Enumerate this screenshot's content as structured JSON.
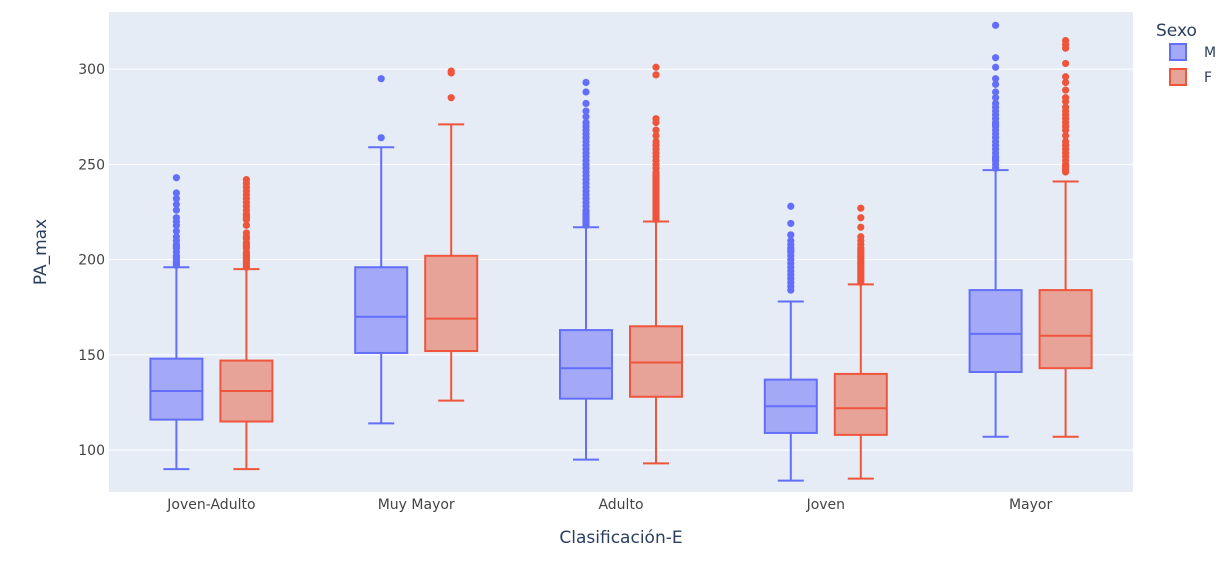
{
  "chart_data": {
    "type": "box",
    "xlabel": "Clasificación-E",
    "ylabel": "PA_max",
    "ylim": [
      78,
      330
    ],
    "yticks": [
      100,
      150,
      200,
      250,
      300
    ],
    "categories": [
      "Joven-Adulto",
      "Muy Mayor",
      "Adulto",
      "Joven",
      "Mayor"
    ],
    "legend": {
      "title": "Sexo",
      "position": "top-right"
    },
    "background": "#e5ecf6",
    "grid": true,
    "series": [
      {
        "name": "M",
        "color": "#636efa",
        "fill": "#a3a9f6",
        "boxes": [
          {
            "category": "Joven-Adulto",
            "lower_fence": 90,
            "q1": 116,
            "median": 131,
            "q3": 148,
            "upper_fence": 196,
            "outliers": [
              197,
              198,
              199,
              200,
              201,
              202,
              204,
              206,
              207,
              208,
              210,
              212,
              215,
              218,
              220,
              222,
              226,
              229,
              232,
              235,
              243
            ]
          },
          {
            "category": "Muy Mayor",
            "lower_fence": 114,
            "q1": 151,
            "median": 170,
            "q3": 196,
            "upper_fence": 259,
            "outliers": [
              264,
              295
            ]
          },
          {
            "category": "Adulto",
            "lower_fence": 95,
            "q1": 127,
            "median": 143,
            "q3": 163,
            "upper_fence": 217,
            "outliers": [
              218,
              219,
              220,
              221,
              222,
              223,
              224,
              225,
              226,
              228,
              230,
              232,
              234,
              236,
              238,
              240,
              242,
              244,
              246,
              248,
              250,
              252,
              254,
              256,
              258,
              260,
              262,
              264,
              266,
              268,
              270,
              272,
              275,
              278,
              282,
              288,
              293
            ]
          },
          {
            "category": "Joven",
            "lower_fence": 84,
            "q1": 109,
            "median": 123,
            "q3": 137,
            "upper_fence": 178,
            "outliers": [
              184,
              186,
              188,
              190,
              192,
              194,
              196,
              198,
              200,
              202,
              204,
              205,
              206,
              208,
              210,
              213,
              219,
              228
            ]
          },
          {
            "category": "Mayor",
            "lower_fence": 107,
            "q1": 141,
            "median": 161,
            "q3": 184,
            "upper_fence": 247,
            "outliers": [
              248,
              250,
              252,
              253,
              254,
              256,
              258,
              260,
              262,
              264,
              266,
              268,
              270,
              271,
              272,
              274,
              276,
              278,
              280,
              282,
              285,
              288,
              292,
              295,
              301,
              306,
              323
            ]
          }
        ]
      },
      {
        "name": "F",
        "color": "#ef553b",
        "fill": "#e8a398",
        "boxes": [
          {
            "category": "Joven-Adulto",
            "lower_fence": 90,
            "q1": 115,
            "median": 131,
            "q3": 147,
            "upper_fence": 195,
            "outliers": [
              196,
              197,
              198,
              199,
              200,
              201,
              202,
              203,
              204,
              206,
              207,
              208,
              209,
              211,
              212,
              214,
              218,
              221,
              222,
              223,
              224,
              226,
              228,
              230,
              232,
              234,
              236,
              238,
              240,
              242
            ]
          },
          {
            "category": "Muy Mayor",
            "lower_fence": 126,
            "q1": 152,
            "median": 169,
            "q3": 202,
            "upper_fence": 271,
            "outliers": [
              285,
              298,
              299
            ]
          },
          {
            "category": "Adulto",
            "lower_fence": 93,
            "q1": 128,
            "median": 146,
            "q3": 165,
            "upper_fence": 220,
            "outliers": [
              221,
              222,
              223,
              224,
              225,
              226,
              227,
              228,
              229,
              230,
              231,
              232,
              233,
              234,
              235,
              236,
              237,
              238,
              239,
              240,
              241,
              242,
              243,
              244,
              245,
              246,
              248,
              250,
              252,
              254,
              256,
              258,
              260,
              262,
              265,
              268,
              272,
              274,
              297,
              301
            ]
          },
          {
            "category": "Joven",
            "lower_fence": 85,
            "q1": 108,
            "median": 122,
            "q3": 140,
            "upper_fence": 187,
            "outliers": [
              188,
              189,
              190,
              191,
              192,
              193,
              194,
              195,
              196,
              197,
              198,
              199,
              200,
              201,
              202,
              203,
              204,
              205,
              206,
              208,
              210,
              212,
              217,
              222,
              227
            ]
          },
          {
            "category": "Mayor",
            "lower_fence": 107,
            "q1": 143,
            "median": 160,
            "q3": 184,
            "upper_fence": 241,
            "outliers": [
              246,
              247,
              248,
              249,
              250,
              252,
              254,
              256,
              258,
              260,
              262,
              265,
              268,
              270,
              272,
              274,
              276,
              278,
              280,
              283,
              285,
              289,
              293,
              296,
              303,
              311,
              313,
              315
            ]
          }
        ]
      }
    ]
  }
}
